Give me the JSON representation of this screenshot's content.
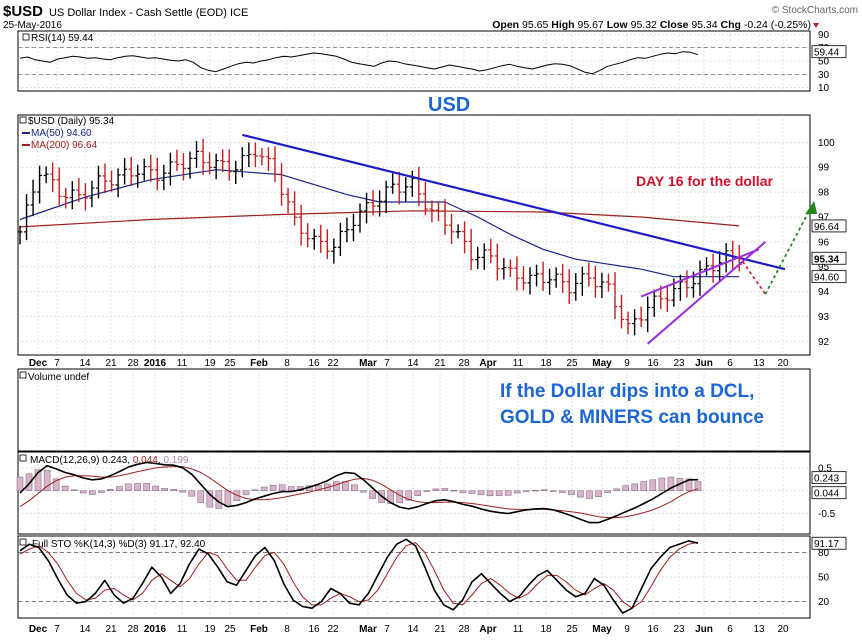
{
  "header": {
    "symbol": "$USD",
    "name": "US Dollar Index - Cash Settle (EOD)",
    "exchange": "ICE",
    "date": "25-May-2016",
    "brand": "© StockCharts.com",
    "quote": {
      "open_label": "Open",
      "open": "95.65",
      "high_label": "High",
      "high": "95.67",
      "low_label": "Low",
      "low": "95.32",
      "close_label": "Close",
      "close": "95.34",
      "chg_label": "Chg",
      "chg": "-0.24 (-0.25%)"
    }
  },
  "colors": {
    "frame": "#0b3f8c",
    "grid": "#c0c0c0",
    "down": "#c41e1e",
    "up": "#000000",
    "ma50": "#17248a",
    "ma200": "#a01f1f",
    "trendline": "#1c1cc8",
    "channel": "#9b2fe0",
    "projection_up": "#1e8a1e",
    "annotation_blue": "#1c66d6",
    "annotation_red": "#d0112b",
    "volume_bar": "#d9b5cc"
  },
  "x_axis": {
    "labels": [
      "Dec",
      "7",
      "14",
      "21",
      "28",
      "2016",
      "11",
      "19",
      "25",
      "Feb",
      "8",
      "16",
      "22",
      "Mar",
      "7",
      "14",
      "21",
      "28",
      "Apr",
      "11",
      "18",
      "25",
      "May",
      "9",
      "16",
      "23",
      "Jun",
      "6",
      "13",
      "20"
    ],
    "bold": [
      "Dec",
      "2016",
      "Feb",
      "Mar",
      "Apr",
      "May",
      "Jun"
    ]
  },
  "annotations": {
    "usd_label": "USD",
    "day16": "DAY 16 for the dollar",
    "note_line1": "If the Dollar dips into a DCL,",
    "note_line2": "GOLD & MINERS can bounce"
  },
  "panels": {
    "rsi": {
      "legend": "RSI(14) 59.44",
      "badge": "59.44",
      "ticks": [
        "90",
        "70",
        "50",
        "30",
        "10"
      ],
      "ticks_v": [
        90,
        70,
        50,
        30,
        10
      ],
      "levels": [
        70,
        30
      ],
      "ylim": [
        5,
        95
      ],
      "values": [
        54,
        56,
        52,
        50,
        48,
        53,
        55,
        57,
        56,
        54,
        55,
        53,
        52,
        55,
        57,
        58,
        56,
        54,
        55,
        53,
        51,
        50,
        52,
        48,
        40,
        36,
        34,
        38,
        42,
        46,
        48,
        47,
        50,
        52,
        55,
        57,
        56,
        58,
        60,
        62,
        61,
        59,
        57,
        53,
        48,
        46,
        44,
        42,
        47,
        50,
        49,
        46,
        44,
        42,
        40,
        38,
        41,
        44,
        42,
        40,
        38,
        35,
        37,
        40,
        43,
        45,
        42,
        40,
        38,
        41,
        44,
        46,
        45,
        43,
        38,
        33,
        31,
        36,
        42,
        45,
        48,
        52,
        55,
        54,
        57,
        60,
        62,
        61,
        64,
        63,
        59.44
      ]
    },
    "price": {
      "legend": "$USD (Daily) 95.34",
      "ma50_legend": "MA(50) 94.60",
      "ma200_legend": "MA(200) 96.64",
      "badges": [
        {
          "text": "96.64",
          "value": 96.64,
          "bold": false
        },
        {
          "text": "95.34",
          "value": 95.34,
          "bold": true
        },
        {
          "text": "94.60",
          "value": 94.6,
          "bold": false
        }
      ],
      "ticks": [
        "100",
        "99",
        "98",
        "97",
        "96",
        "95",
        "94",
        "93",
        "92"
      ],
      "ticks_v": [
        100,
        99,
        98,
        97,
        96,
        95,
        94,
        93,
        92
      ],
      "ylim": [
        91.45,
        101.1
      ],
      "xlim": [
        0,
        117
      ],
      "ma50": {
        "x": [
          0,
          10,
          20,
          30,
          40,
          50,
          55,
          60,
          65,
          70,
          75,
          80,
          85,
          90,
          95,
          100,
          105,
          110
        ],
        "y": [
          96.9,
          97.8,
          98.5,
          98.9,
          98.7,
          97.9,
          97.6,
          97.6,
          97.6,
          97.0,
          96.3,
          95.7,
          95.3,
          95.1,
          94.9,
          94.6,
          94.6,
          94.6
        ]
      },
      "ma200": {
        "x": [
          0,
          20,
          40,
          60,
          80,
          95,
          110
        ],
        "y": [
          96.6,
          96.9,
          97.1,
          97.25,
          97.2,
          97.0,
          96.64
        ]
      }
    },
    "volume": {
      "legend": "Volume undef"
    },
    "macd": {
      "legend": "MACD(12,26,9)",
      "legend_vals": [
        "0.243",
        "0.044",
        "0.199"
      ],
      "badges": [
        "0.243",
        "0.044"
      ],
      "ticks": [
        "0.5",
        "0.0",
        "-0.5"
      ],
      "ticks_v": [
        0.5,
        0.0,
        -0.5
      ],
      "ylim": [
        -0.95,
        0.85
      ],
      "macd_line": [
        -0.05,
        0.15,
        0.4,
        0.55,
        0.48,
        0.4,
        0.35,
        0.28,
        0.24,
        0.26,
        0.33,
        0.42,
        0.52,
        0.58,
        0.62,
        0.6,
        0.57,
        0.56,
        0.5,
        0.36,
        0.14,
        -0.08,
        -0.25,
        -0.35,
        -0.32,
        -0.26,
        -0.18,
        -0.12,
        -0.06,
        -0.02,
        -0.02,
        0.02,
        0.08,
        0.14,
        0.22,
        0.33,
        0.4,
        0.38,
        0.24,
        0.06,
        -0.12,
        -0.26,
        -0.36,
        -0.4,
        -0.35,
        -0.28,
        -0.22,
        -0.2,
        -0.24,
        -0.3,
        -0.34,
        -0.4,
        -0.45,
        -0.48,
        -0.5,
        -0.46,
        -0.42,
        -0.4,
        -0.39,
        -0.42,
        -0.48,
        -0.55,
        -0.63,
        -0.7,
        -0.7,
        -0.63,
        -0.55,
        -0.46,
        -0.38,
        -0.28,
        -0.18,
        -0.06,
        0.06,
        0.15,
        0.24,
        0.243
      ],
      "signal_line": [
        -0.35,
        -0.22,
        -0.06,
        0.1,
        0.22,
        0.3,
        0.33,
        0.33,
        0.32,
        0.3,
        0.3,
        0.33,
        0.37,
        0.42,
        0.46,
        0.5,
        0.52,
        0.53,
        0.53,
        0.48,
        0.4,
        0.28,
        0.14,
        0.0,
        -0.1,
        -0.17,
        -0.2,
        -0.2,
        -0.18,
        -0.15,
        -0.11,
        -0.07,
        -0.03,
        0.02,
        0.07,
        0.13,
        0.2,
        0.25,
        0.27,
        0.23,
        0.14,
        0.02,
        -0.1,
        -0.19,
        -0.24,
        -0.26,
        -0.26,
        -0.25,
        -0.25,
        -0.26,
        -0.28,
        -0.31,
        -0.34,
        -0.37,
        -0.4,
        -0.41,
        -0.41,
        -0.41,
        -0.41,
        -0.42,
        -0.44,
        -0.46,
        -0.49,
        -0.53,
        -0.57,
        -0.59,
        -0.59,
        -0.57,
        -0.53,
        -0.48,
        -0.42,
        -0.34,
        -0.24,
        -0.12,
        -0.02,
        0.044
      ],
      "histogram": [
        0.3,
        0.37,
        0.46,
        0.45,
        0.26,
        0.1,
        0.02,
        -0.05,
        -0.08,
        -0.04,
        0.03,
        0.09,
        0.15,
        0.16,
        0.16,
        0.1,
        0.05,
        0.03,
        -0.03,
        -0.12,
        -0.26,
        -0.36,
        -0.39,
        -0.35,
        -0.22,
        -0.09,
        0.02,
        0.08,
        0.12,
        0.13,
        0.09,
        0.09,
        0.11,
        0.12,
        0.15,
        0.2,
        0.2,
        0.13,
        -0.03,
        -0.17,
        -0.26,
        -0.28,
        -0.26,
        -0.21,
        -0.11,
        -0.02,
        0.04,
        0.05,
        0.01,
        -0.04,
        -0.06,
        -0.09,
        -0.11,
        -0.11,
        -0.1,
        -0.05,
        -0.01,
        0.01,
        0.02,
        0.0,
        -0.04,
        -0.09,
        -0.14,
        -0.17,
        -0.13,
        -0.04,
        0.04,
        0.11,
        0.15,
        0.2,
        0.24,
        0.28,
        0.3,
        0.27,
        0.26,
        0.199
      ]
    },
    "sto": {
      "legend": "Full STO %K(14,3) %D(3) 91.17, 92.40",
      "badge": "91.17",
      "ticks": [
        "80",
        "50",
        "20"
      ],
      "ticks_v": [
        80,
        50,
        20
      ],
      "levels": [
        80,
        20
      ],
      "ylim": [
        0,
        100
      ],
      "k": [
        82,
        90,
        86,
        70,
        48,
        28,
        18,
        20,
        30,
        46,
        28,
        18,
        24,
        42,
        62,
        50,
        30,
        42,
        66,
        84,
        78,
        62,
        44,
        40,
        58,
        76,
        86,
        70,
        42,
        22,
        14,
        12,
        20,
        36,
        30,
        18,
        16,
        30,
        52,
        74,
        90,
        96,
        88,
        62,
        34,
        16,
        10,
        22,
        44,
        54,
        42,
        30,
        20,
        26,
        40,
        52,
        58,
        46,
        34,
        26,
        30,
        48,
        40,
        22,
        6,
        12,
        36,
        60,
        74,
        86,
        90,
        94,
        91.17
      ],
      "d": [
        78,
        84,
        88,
        80,
        66,
        46,
        30,
        22,
        24,
        34,
        36,
        28,
        22,
        30,
        46,
        54,
        46,
        38,
        48,
        66,
        80,
        76,
        60,
        46,
        46,
        62,
        76,
        80,
        66,
        44,
        26,
        16,
        16,
        24,
        30,
        26,
        20,
        22,
        34,
        54,
        74,
        88,
        92,
        80,
        58,
        34,
        18,
        16,
        28,
        42,
        48,
        40,
        30,
        24,
        30,
        42,
        52,
        52,
        44,
        34,
        28,
        36,
        42,
        34,
        20,
        12,
        20,
        38,
        58,
        74,
        84,
        90,
        92.4
      ]
    }
  },
  "chart_data": {
    "type": "line",
    "title": "$USD US Dollar Index - Cash Settle (EOD) ICE",
    "series": [
      {
        "name": "$USD (Daily)",
        "x": [
          0,
          3,
          6,
          9,
          12,
          15,
          18,
          21,
          24,
          27,
          30,
          33,
          36,
          39,
          42,
          45,
          48,
          51,
          54,
          57,
          60,
          63,
          66,
          69,
          72,
          75,
          78,
          81,
          84,
          87,
          90,
          93,
          96,
          99,
          102,
          105,
          108,
          110
        ],
        "y": [
          96.4,
          98.9,
          98.0,
          97.8,
          98.4,
          98.6,
          98.9,
          98.7,
          99.1,
          99.4,
          99.1,
          99.0,
          99.7,
          98.8,
          96.8,
          96.0,
          95.8,
          96.9,
          97.6,
          98.2,
          98.3,
          97.2,
          96.6,
          95.5,
          95.4,
          94.7,
          94.5,
          94.6,
          94.2,
          94.6,
          94.1,
          92.5,
          93.4,
          93.9,
          94.3,
          94.9,
          95.4,
          95.34
        ]
      },
      {
        "name": "MA(50)",
        "x": [
          0,
          10,
          20,
          30,
          40,
          50,
          55,
          60,
          65,
          70,
          75,
          80,
          85,
          90,
          95,
          100,
          105,
          110
        ],
        "y": [
          96.9,
          97.8,
          98.5,
          98.9,
          98.7,
          97.9,
          97.6,
          97.6,
          97.6,
          97.0,
          96.3,
          95.7,
          95.3,
          95.1,
          94.9,
          94.6,
          94.6,
          94.6
        ]
      },
      {
        "name": "MA(200)",
        "x": [
          0,
          20,
          40,
          60,
          80,
          95,
          110
        ],
        "y": [
          96.6,
          96.9,
          97.1,
          97.25,
          97.2,
          97.0,
          96.64
        ]
      }
    ],
    "overlays": {
      "downtrend_line": {
        "x": [
          34,
          117
        ],
        "y": [
          100.3,
          94.9
        ]
      },
      "channel_upper": {
        "x": [
          95,
          113
        ],
        "y": [
          93.8,
          95.7
        ]
      },
      "channel_lower": {
        "x": [
          96,
          114
        ],
        "y": [
          91.9,
          96.0
        ]
      },
      "projection_down": {
        "x": [
          110,
          114
        ],
        "y": [
          95.4,
          93.9
        ]
      },
      "projection_up": {
        "x": [
          114,
          121
        ],
        "y": [
          93.9,
          97.4
        ]
      }
    },
    "ylim": [
      91.45,
      101.1
    ],
    "xlabel": "",
    "ylabel": "",
    "grid": true,
    "legend": "top-left"
  }
}
